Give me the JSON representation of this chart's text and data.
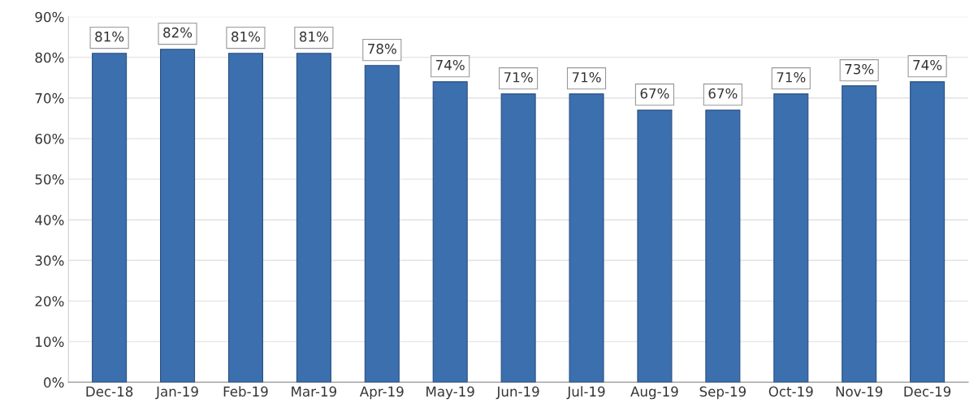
{
  "chart_data": {
    "type": "bar",
    "categories": [
      "Dec-18",
      "Jan-19",
      "Feb-19",
      "Mar-19",
      "Apr-19",
      "May-19",
      "Jun-19",
      "Jul-19",
      "Aug-19",
      "Sep-19",
      "Oct-19",
      "Nov-19",
      "Dec-19"
    ],
    "values": [
      81,
      82,
      81,
      81,
      78,
      74,
      71,
      71,
      67,
      67,
      71,
      73,
      74
    ],
    "value_labels": [
      "81%",
      "82%",
      "81%",
      "81%",
      "78%",
      "74%",
      "71%",
      "71%",
      "67%",
      "67%",
      "71%",
      "73%",
      "74%"
    ],
    "color": "#3b6fae",
    "ylim": [
      0,
      90
    ],
    "yticks": [
      {
        "value": 0,
        "label": "0%"
      },
      {
        "value": 10,
        "label": "10%"
      },
      {
        "value": 20,
        "label": "20%"
      },
      {
        "value": 30,
        "label": "30%"
      },
      {
        "value": 40,
        "label": "40%"
      },
      {
        "value": 50,
        "label": "50%"
      },
      {
        "value": 60,
        "label": "60%"
      },
      {
        "value": 70,
        "label": "70%"
      },
      {
        "value": 80,
        "label": "80%"
      },
      {
        "value": 90,
        "label": "90%"
      }
    ],
    "grid": "y"
  }
}
